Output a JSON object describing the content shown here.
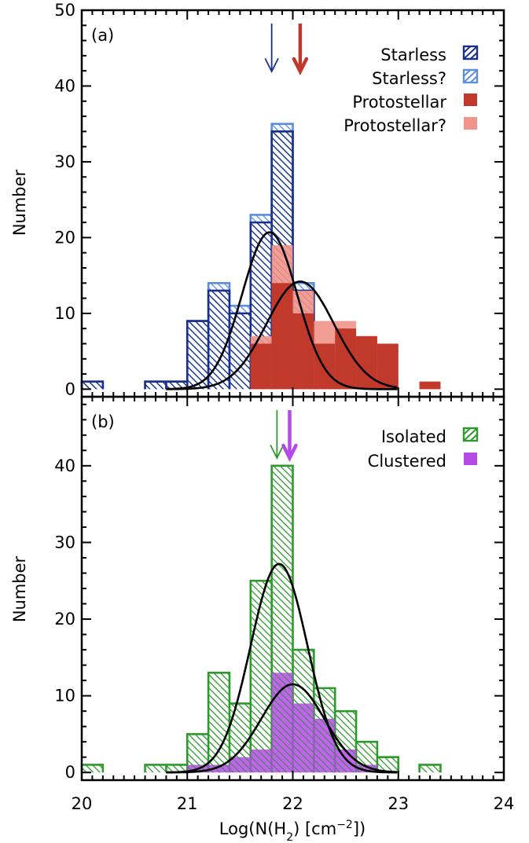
{
  "colors": {
    "starless": "#1a2f8a",
    "starless_q": "#5b8ee0",
    "protostellar": "#c0392b",
    "protostellar_q": "#f1948a",
    "isolated": "#2e9a2e",
    "clustered": "#b44be8",
    "fit": "#000000"
  },
  "chart_data": [
    {
      "type": "bar",
      "panel_label": "(a)",
      "xlabel": "Log(N(H₂) [cm⁻²])",
      "ylabel": "Number",
      "xlim": [
        20,
        24
      ],
      "ylim": [
        -1,
        50
      ],
      "x_ticks": [
        "20",
        "21",
        "22",
        "23",
        "24"
      ],
      "y_ticks": [
        "0",
        "10",
        "20",
        "30",
        "40",
        "50"
      ],
      "bin_width": 0.2,
      "bin_starts": [
        20.0,
        20.2,
        20.4,
        20.6,
        20.8,
        21.0,
        21.2,
        21.4,
        21.6,
        21.8,
        22.0,
        22.2,
        22.4,
        22.6,
        22.8,
        23.0,
        23.2,
        23.4
      ],
      "series": [
        {
          "name": "Starless",
          "color_key": "starless",
          "style": "hatched",
          "values": [
            1,
            0,
            0,
            1,
            1,
            9,
            13,
            10,
            22,
            34,
            13,
            4,
            1,
            0,
            0,
            0,
            0,
            0
          ]
        },
        {
          "name": "Starless?",
          "color_key": "starless_q",
          "style": "hatched",
          "values": [
            1,
            0,
            0,
            1,
            1,
            9,
            14,
            11,
            23,
            35,
            14,
            5,
            1,
            0,
            0,
            0,
            0,
            0
          ]
        },
        {
          "name": "Protostellar",
          "color_key": "protostellar",
          "style": "filled",
          "values": [
            0,
            0,
            0,
            0,
            0,
            0,
            0,
            0,
            6,
            14,
            10,
            6,
            8,
            7,
            6,
            0,
            1,
            0
          ]
        },
        {
          "name": "Protostellar?",
          "color_key": "protostellar_q",
          "style": "filled",
          "values": [
            0,
            0,
            0,
            0,
            0,
            0,
            0,
            0,
            7,
            19,
            13,
            9,
            9,
            7,
            6,
            0,
            1,
            0
          ]
        }
      ],
      "fits": [
        {
          "mean": 21.78,
          "sigma": 0.26,
          "amplitude": 20.7
        },
        {
          "mean": 22.07,
          "sigma": 0.32,
          "amplitude": 14.2
        }
      ],
      "arrows": [
        {
          "x": 21.8,
          "color_key": "starless",
          "weight": "thin"
        },
        {
          "x": 22.07,
          "color_key": "protostellar",
          "weight": "thick"
        }
      ],
      "legend_position": "top-right"
    },
    {
      "type": "bar",
      "panel_label": "(b)",
      "xlabel": "Log(N(H₂) [cm⁻²])",
      "ylabel": "Number",
      "xlim": [
        20,
        24
      ],
      "ylim": [
        -1,
        49
      ],
      "x_ticks": [
        "20",
        "21",
        "22",
        "23",
        "24"
      ],
      "y_ticks": [
        "0",
        "10",
        "20",
        "30",
        "40"
      ],
      "bin_width": 0.2,
      "bin_starts": [
        20.0,
        20.2,
        20.4,
        20.6,
        20.8,
        21.0,
        21.2,
        21.4,
        21.6,
        21.8,
        22.0,
        22.2,
        22.4,
        22.6,
        22.8,
        23.0,
        23.2,
        23.4
      ],
      "series": [
        {
          "name": "Isolated",
          "color_key": "isolated",
          "style": "hatched",
          "values": [
            1,
            0,
            0,
            1,
            1,
            5,
            13,
            9,
            25,
            40,
            16,
            11,
            8,
            4,
            2,
            0,
            1,
            0
          ]
        },
        {
          "name": "Clustered",
          "color_key": "clustered",
          "style": "filled",
          "values": [
            0,
            0,
            0,
            0,
            0,
            1,
            1,
            2,
            3,
            13,
            9,
            7,
            3,
            1,
            0,
            0,
            0,
            0
          ]
        }
      ],
      "fits": [
        {
          "mean": 21.87,
          "sigma": 0.27,
          "amplitude": 27.2
        },
        {
          "mean": 22.0,
          "sigma": 0.3,
          "amplitude": 11.5
        }
      ],
      "arrows": [
        {
          "x": 21.85,
          "color_key": "isolated",
          "weight": "thin"
        },
        {
          "x": 21.97,
          "color_key": "clustered",
          "weight": "thick"
        }
      ],
      "legend_position": "top-right"
    }
  ]
}
